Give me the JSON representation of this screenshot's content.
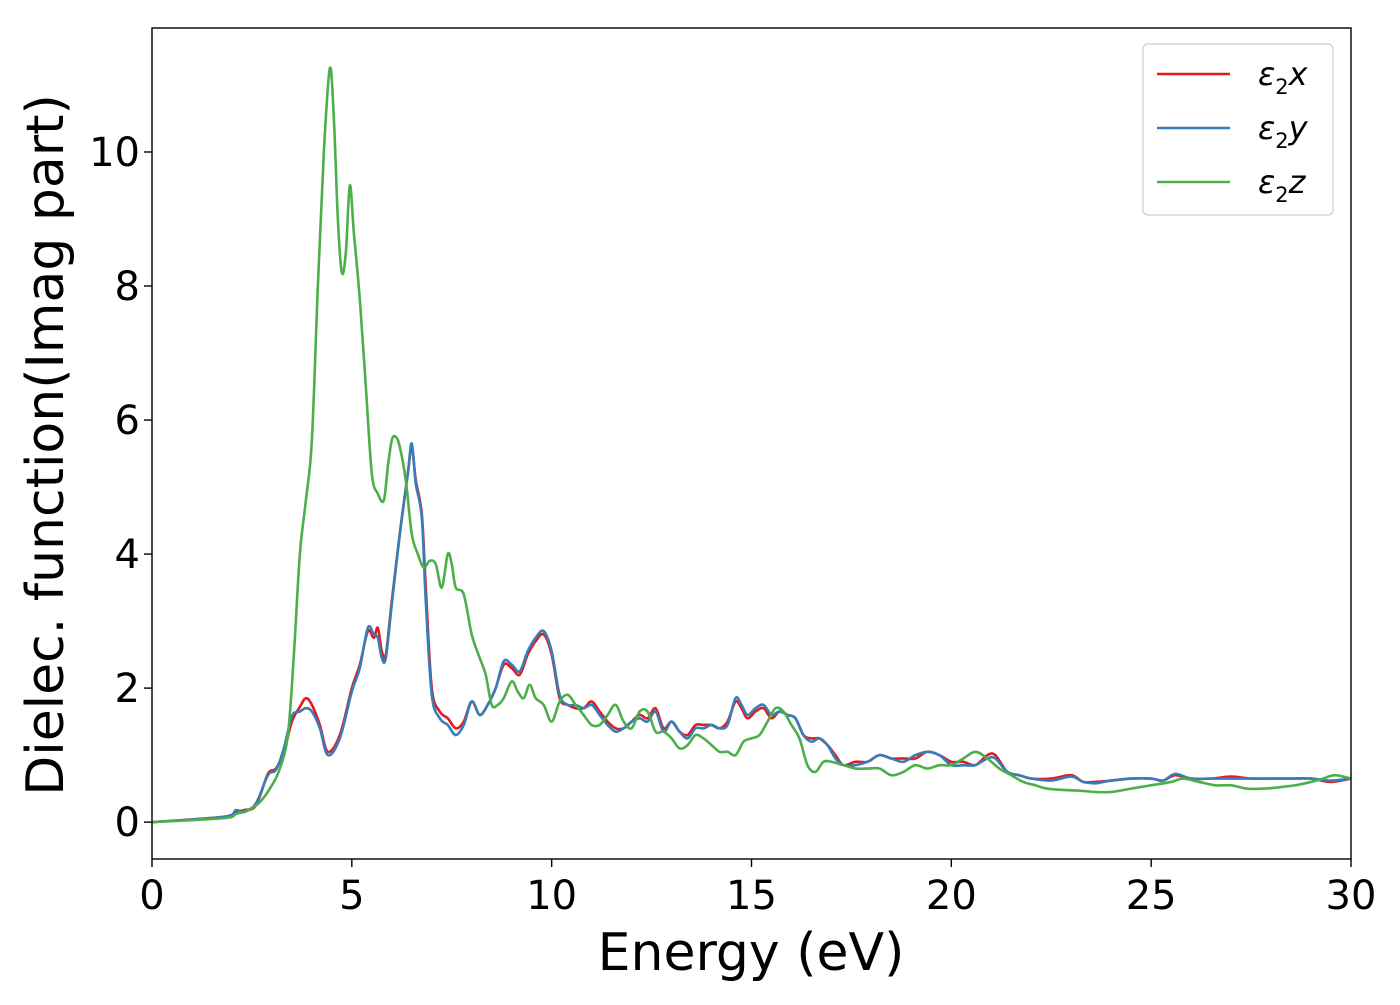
{
  "chart_data": {
    "type": "line",
    "xlabel": "Energy (eV)",
    "ylabel": "Dielec. function(Imag part)",
    "xlim": [
      0,
      30
    ],
    "ylim": [
      -0.55,
      11.85
    ],
    "xticks": [
      "0",
      "5",
      "10",
      "15",
      "20",
      "25",
      "30"
    ],
    "yticks": [
      "0",
      "2",
      "4",
      "6",
      "8",
      "10"
    ],
    "grid": false,
    "legend_position": "top-right",
    "series": [
      {
        "name": "ε₂x",
        "legend_main": "ε",
        "legend_sub": "2",
        "legend_var": "x",
        "color": "#e41a1c",
        "x": [
          0,
          1.8,
          2.1,
          2.3,
          2.6,
          2.9,
          3.1,
          3.3,
          3.5,
          3.7,
          3.85,
          4.0,
          4.2,
          4.4,
          4.7,
          5.0,
          5.2,
          5.4,
          5.55,
          5.65,
          5.75,
          5.85,
          6.0,
          6.2,
          6.4,
          6.5,
          6.6,
          6.75,
          6.85,
          7.0,
          7.2,
          7.4,
          7.6,
          7.8,
          8.0,
          8.2,
          8.4,
          8.6,
          8.8,
          9.0,
          9.2,
          9.4,
          9.6,
          9.8,
          10.0,
          10.2,
          10.4,
          10.6,
          10.8,
          11.0,
          11.2,
          11.4,
          11.6,
          11.8,
          12.0,
          12.2,
          12.4,
          12.6,
          12.8,
          13.0,
          13.2,
          13.4,
          13.6,
          13.8,
          14.0,
          14.2,
          14.4,
          14.6,
          14.75,
          14.9,
          15.1,
          15.3,
          15.5,
          15.7,
          15.9,
          16.1,
          16.3,
          16.5,
          16.7,
          16.9,
          17.1,
          17.3,
          17.6,
          17.9,
          18.2,
          18.5,
          18.8,
          19.1,
          19.4,
          19.7,
          20.0,
          20.3,
          20.6,
          20.9,
          21.1,
          21.4,
          21.7,
          22.0,
          22.5,
          23.0,
          23.3,
          23.6,
          24.0,
          24.5,
          25.0,
          25.3,
          25.6,
          26.0,
          26.5,
          27.0,
          27.5,
          28.0,
          28.5,
          29.0,
          29.5,
          30.0
        ],
        "y": [
          0,
          0.08,
          0.15,
          0.18,
          0.25,
          0.72,
          0.8,
          1.05,
          1.5,
          1.72,
          1.85,
          1.75,
          1.45,
          1.05,
          1.3,
          2.0,
          2.35,
          2.85,
          2.75,
          2.9,
          2.55,
          2.5,
          3.3,
          4.3,
          5.2,
          5.6,
          5.1,
          4.6,
          3.5,
          2.0,
          1.65,
          1.55,
          1.4,
          1.5,
          1.8,
          1.6,
          1.75,
          2.0,
          2.35,
          2.3,
          2.2,
          2.5,
          2.7,
          2.8,
          2.5,
          1.85,
          1.75,
          1.7,
          1.7,
          1.8,
          1.65,
          1.5,
          1.4,
          1.4,
          1.5,
          1.6,
          1.55,
          1.7,
          1.4,
          1.5,
          1.35,
          1.3,
          1.45,
          1.45,
          1.45,
          1.4,
          1.5,
          1.8,
          1.7,
          1.55,
          1.65,
          1.7,
          1.55,
          1.65,
          1.6,
          1.55,
          1.3,
          1.25,
          1.25,
          1.15,
          1.0,
          0.85,
          0.9,
          0.9,
          1.0,
          0.95,
          0.95,
          0.95,
          1.05,
          1.0,
          0.9,
          0.9,
          0.85,
          1.0,
          1.0,
          0.75,
          0.7,
          0.65,
          0.65,
          0.7,
          0.6,
          0.6,
          0.62,
          0.65,
          0.65,
          0.62,
          0.7,
          0.65,
          0.65,
          0.68,
          0.65,
          0.65,
          0.65,
          0.65,
          0.6,
          0.65
        ]
      },
      {
        "name": "ε₂y",
        "legend_main": "ε",
        "legend_sub": "2",
        "legend_var": "y",
        "color": "#377eb8",
        "x": [
          0,
          1.8,
          2.1,
          2.3,
          2.6,
          2.9,
          3.1,
          3.3,
          3.5,
          3.7,
          3.85,
          4.0,
          4.2,
          4.4,
          4.7,
          5.0,
          5.2,
          5.4,
          5.55,
          5.65,
          5.75,
          5.85,
          6.0,
          6.2,
          6.4,
          6.5,
          6.6,
          6.75,
          6.85,
          7.0,
          7.2,
          7.4,
          7.6,
          7.8,
          8.0,
          8.2,
          8.4,
          8.6,
          8.8,
          9.0,
          9.2,
          9.4,
          9.6,
          9.8,
          10.0,
          10.2,
          10.4,
          10.6,
          10.8,
          11.0,
          11.2,
          11.4,
          11.6,
          11.8,
          12.0,
          12.2,
          12.4,
          12.6,
          12.8,
          13.0,
          13.2,
          13.4,
          13.6,
          13.8,
          14.0,
          14.2,
          14.4,
          14.6,
          14.75,
          14.9,
          15.1,
          15.3,
          15.5,
          15.7,
          15.9,
          16.1,
          16.3,
          16.5,
          16.7,
          16.9,
          17.1,
          17.3,
          17.6,
          17.9,
          18.2,
          18.5,
          18.8,
          19.1,
          19.4,
          19.7,
          20.0,
          20.3,
          20.6,
          20.9,
          21.1,
          21.4,
          21.7,
          22.0,
          22.5,
          23.0,
          23.3,
          23.6,
          24.0,
          24.5,
          25.0,
          25.3,
          25.6,
          26.0,
          26.5,
          27.0,
          27.5,
          28.0,
          28.5,
          29.0,
          29.5,
          30.0
        ],
        "y": [
          0,
          0.08,
          0.18,
          0.15,
          0.28,
          0.7,
          0.78,
          1.1,
          1.58,
          1.65,
          1.7,
          1.65,
          1.4,
          1.0,
          1.25,
          1.95,
          2.3,
          2.9,
          2.8,
          2.75,
          2.45,
          2.45,
          3.25,
          4.3,
          5.2,
          5.65,
          5.05,
          4.55,
          3.3,
          1.9,
          1.55,
          1.45,
          1.3,
          1.45,
          1.8,
          1.6,
          1.75,
          2.0,
          2.4,
          2.35,
          2.25,
          2.55,
          2.75,
          2.85,
          2.55,
          1.9,
          1.75,
          1.75,
          1.7,
          1.75,
          1.6,
          1.45,
          1.35,
          1.4,
          1.5,
          1.55,
          1.5,
          1.65,
          1.35,
          1.5,
          1.35,
          1.25,
          1.4,
          1.4,
          1.45,
          1.4,
          1.45,
          1.85,
          1.75,
          1.6,
          1.7,
          1.75,
          1.6,
          1.65,
          1.6,
          1.55,
          1.3,
          1.2,
          1.25,
          1.15,
          0.95,
          0.85,
          0.85,
          0.9,
          1.0,
          0.95,
          0.9,
          1.0,
          1.05,
          1.0,
          0.85,
          0.85,
          0.85,
          0.95,
          0.95,
          0.75,
          0.7,
          0.65,
          0.62,
          0.68,
          0.6,
          0.58,
          0.62,
          0.65,
          0.65,
          0.62,
          0.72,
          0.65,
          0.65,
          0.65,
          0.65,
          0.65,
          0.65,
          0.65,
          0.62,
          0.65
        ]
      },
      {
        "name": "ε₂z",
        "legend_main": "ε",
        "legend_sub": "2",
        "legend_var": "z",
        "color": "#4daf4a",
        "x": [
          0,
          1.8,
          2.1,
          2.4,
          2.7,
          3.0,
          3.2,
          3.4,
          3.55,
          3.7,
          3.85,
          4.0,
          4.15,
          4.3,
          4.45,
          4.55,
          4.65,
          4.75,
          4.85,
          4.95,
          5.05,
          5.2,
          5.35,
          5.5,
          5.65,
          5.8,
          5.9,
          6.0,
          6.1,
          6.2,
          6.35,
          6.5,
          6.65,
          6.8,
          6.95,
          7.1,
          7.25,
          7.4,
          7.5,
          7.6,
          7.8,
          8.0,
          8.2,
          8.35,
          8.5,
          8.65,
          8.8,
          9.0,
          9.15,
          9.3,
          9.45,
          9.6,
          9.8,
          10.0,
          10.2,
          10.4,
          10.6,
          10.8,
          11.0,
          11.2,
          11.4,
          11.6,
          11.8,
          12.0,
          12.2,
          12.4,
          12.6,
          12.8,
          13.0,
          13.2,
          13.4,
          13.6,
          13.8,
          14.0,
          14.2,
          14.4,
          14.6,
          14.8,
          15.0,
          15.2,
          15.4,
          15.6,
          15.8,
          16.0,
          16.2,
          16.4,
          16.6,
          16.8,
          17.0,
          17.3,
          17.6,
          17.9,
          18.2,
          18.5,
          18.8,
          19.1,
          19.4,
          19.7,
          20.0,
          20.3,
          20.6,
          20.9,
          21.2,
          21.5,
          21.8,
          22.1,
          22.4,
          22.8,
          23.2,
          23.6,
          24.0,
          24.5,
          25.0,
          25.5,
          25.8,
          26.2,
          26.6,
          27.0,
          27.4,
          27.8,
          28.2,
          28.6,
          29.0,
          29.3,
          29.6,
          30.0
        ],
        "y": [
          0,
          0.06,
          0.12,
          0.18,
          0.3,
          0.55,
          0.8,
          1.3,
          2.5,
          4.0,
          4.8,
          5.7,
          8.0,
          10.0,
          11.25,
          10.5,
          9.0,
          8.2,
          8.5,
          9.5,
          8.8,
          7.8,
          6.5,
          5.2,
          4.9,
          4.8,
          5.3,
          5.7,
          5.75,
          5.6,
          5.1,
          4.3,
          4.0,
          3.8,
          3.9,
          3.85,
          3.5,
          4.0,
          3.85,
          3.5,
          3.4,
          2.8,
          2.45,
          2.2,
          1.75,
          1.75,
          1.85,
          2.1,
          1.95,
          1.85,
          2.05,
          1.85,
          1.75,
          1.5,
          1.8,
          1.9,
          1.75,
          1.6,
          1.45,
          1.45,
          1.6,
          1.75,
          1.5,
          1.4,
          1.65,
          1.65,
          1.35,
          1.35,
          1.25,
          1.1,
          1.15,
          1.3,
          1.25,
          1.15,
          1.05,
          1.05,
          1.0,
          1.2,
          1.25,
          1.3,
          1.5,
          1.7,
          1.65,
          1.45,
          1.25,
          0.85,
          0.75,
          0.9,
          0.9,
          0.85,
          0.8,
          0.8,
          0.8,
          0.7,
          0.75,
          0.85,
          0.8,
          0.85,
          0.85,
          0.95,
          1.05,
          0.95,
          0.8,
          0.7,
          0.6,
          0.55,
          0.5,
          0.48,
          0.47,
          0.45,
          0.45,
          0.5,
          0.55,
          0.6,
          0.65,
          0.6,
          0.55,
          0.55,
          0.5,
          0.5,
          0.52,
          0.55,
          0.6,
          0.65,
          0.7,
          0.65
        ]
      }
    ]
  }
}
